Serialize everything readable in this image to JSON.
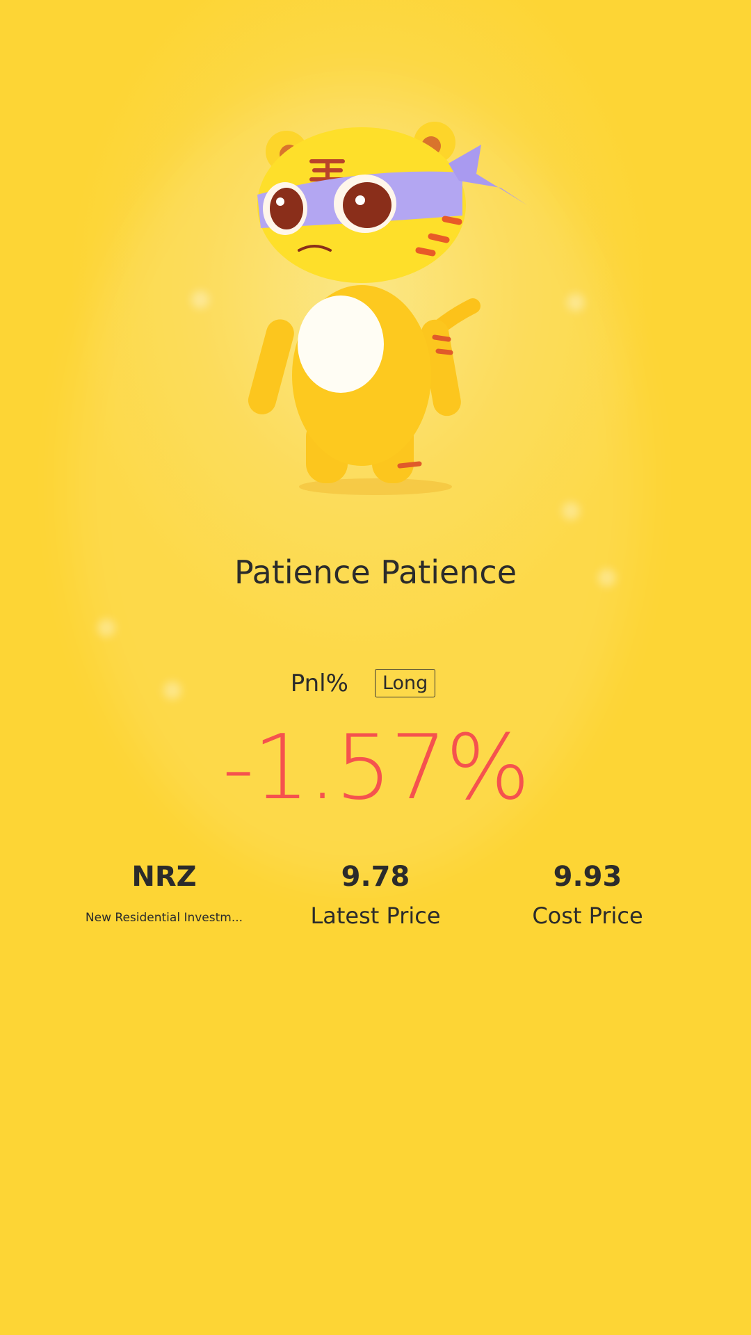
{
  "mascot": {
    "icon": "ninja-tiger-mascot"
  },
  "title": "Patience Patience",
  "pnl": {
    "label": "Pnl%",
    "direction": "Long",
    "value": "-1.57%",
    "color": "#f5524e"
  },
  "stats": {
    "symbol": {
      "value": "NRZ",
      "name": "New Residential Investm..."
    },
    "latest": {
      "value": "9.78",
      "label": "Latest Price"
    },
    "cost": {
      "value": "9.93",
      "label": "Cost Price"
    }
  },
  "colors": {
    "background": "#fdd535",
    "text": "#2b2b2b"
  }
}
